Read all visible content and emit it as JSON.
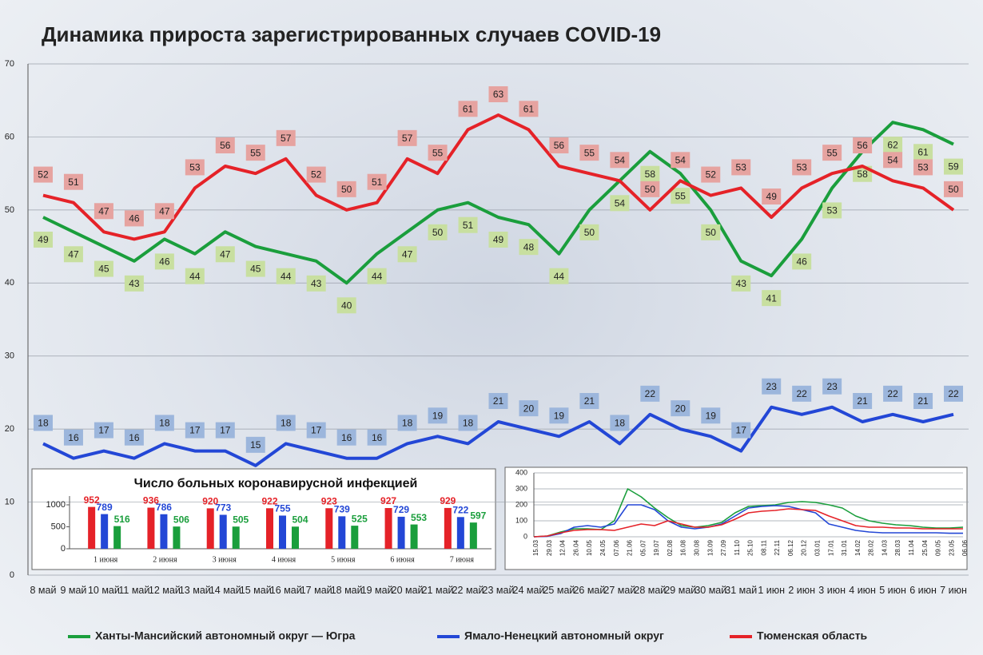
{
  "chart_data": [
    {
      "type": "line",
      "title": "Динамика прироста зарегистрированных случаев COVID-19",
      "categories": [
        "8 май",
        "9 май",
        "10 май",
        "11 май",
        "12 май",
        "13 май",
        "14 май",
        "15 май",
        "16 май",
        "17 май",
        "18 май",
        "19 май",
        "20 май",
        "21 май",
        "22 май",
        "23 май",
        "24 май",
        "25 май",
        "26 май",
        "27 май",
        "28 май",
        "29 май",
        "30 май",
        "31 май",
        "1 июн",
        "2 июн",
        "3 июн",
        "4 июн",
        "5 июн",
        "6 июн",
        "7 июн"
      ],
      "series": [
        {
          "name": "Ханты-Мансийский автономный округ — Югра",
          "color": "#1a9e3c",
          "label_color": "#c8dfa0",
          "values": [
            49,
            47,
            45,
            43,
            46,
            44,
            47,
            45,
            44,
            43,
            40,
            44,
            47,
            50,
            51,
            49,
            48,
            44,
            50,
            54,
            58,
            55,
            50,
            43,
            41,
            46,
            53,
            58,
            62,
            61,
            59
          ]
        },
        {
          "name": "Ямало-Ненецкий автономный округ",
          "color": "#2347d6",
          "label_color": "#9cb6dc",
          "values": [
            18,
            16,
            17,
            16,
            18,
            17,
            17,
            15,
            18,
            17,
            16,
            16,
            18,
            19,
            18,
            21,
            20,
            19,
            21,
            18,
            22,
            20,
            19,
            17,
            23,
            22,
            23,
            21,
            22,
            21,
            22
          ]
        },
        {
          "name": "Тюменская область",
          "color": "#e52228",
          "label_color": "#e6a3a0",
          "values": [
            52,
            51,
            47,
            46,
            47,
            53,
            56,
            55,
            57,
            52,
            50,
            51,
            57,
            55,
            61,
            63,
            61,
            56,
            55,
            54,
            50,
            54,
            52,
            53,
            49,
            53,
            55,
            56,
            54,
            53,
            50
          ]
        }
      ],
      "ylim": [
        0,
        70
      ],
      "yticks": [
        0,
        10,
        20,
        30,
        40,
        50,
        60,
        70
      ],
      "grid": true
    },
    {
      "type": "bar",
      "title": "Число больных коронавирусной  инфекцией",
      "categories": [
        "1 июня",
        "2 июня",
        "3 июня",
        "4 июня",
        "5 июня",
        "6 июня",
        "7 июня"
      ],
      "series": [
        {
          "color": "#e52228",
          "values": [
            952,
            936,
            920,
            922,
            923,
            927,
            929
          ]
        },
        {
          "color": "#2347d6",
          "values": [
            789,
            786,
            773,
            755,
            739,
            729,
            722
          ]
        },
        {
          "color": "#1a9e3c",
          "values": [
            516,
            506,
            505,
            504,
            525,
            553,
            597
          ]
        }
      ],
      "ylim": [
        0,
        1200
      ],
      "yticks": [
        0,
        500,
        1000
      ]
    },
    {
      "type": "line",
      "categories": [
        "15.03",
        "29.03",
        "12.04",
        "26.04",
        "10.05",
        "24.05",
        "07.06",
        "21.06",
        "05.07",
        "19.07",
        "02.08",
        "16.08",
        "30.08",
        "13.09",
        "27.09",
        "11.10",
        "25.10",
        "08.11",
        "22.11",
        "06.12",
        "20.12",
        "03.01",
        "17.01",
        "31.01",
        "14.02",
        "28.02",
        "14.03",
        "28.03",
        "11.04",
        "25.04",
        "09.05",
        "23.05",
        "06.06"
      ],
      "series": [
        {
          "color": "#1a9e3c",
          "values": [
            0,
            5,
            30,
            50,
            50,
            45,
            100,
            300,
            250,
            180,
            120,
            70,
            60,
            70,
            90,
            150,
            190,
            195,
            200,
            215,
            220,
            215,
            200,
            180,
            130,
            100,
            85,
            75,
            70,
            60,
            55,
            55,
            60
          ]
        },
        {
          "color": "#2347d6",
          "values": [
            0,
            3,
            20,
            60,
            70,
            60,
            80,
            200,
            200,
            170,
            100,
            60,
            50,
            60,
            80,
            130,
            180,
            190,
            195,
            190,
            170,
            150,
            80,
            60,
            40,
            30,
            25,
            25,
            25,
            25,
            25,
            22,
            22
          ]
        },
        {
          "color": "#e52228",
          "values": [
            0,
            5,
            25,
            40,
            45,
            45,
            40,
            60,
            80,
            70,
            100,
            80,
            60,
            60,
            75,
            110,
            150,
            160,
            165,
            175,
            170,
            165,
            130,
            100,
            70,
            60,
            60,
            55,
            55,
            50,
            50,
            50,
            50
          ]
        }
      ],
      "ylim": [
        0,
        400
      ],
      "yticks": [
        0,
        100,
        200,
        300,
        400
      ],
      "grid": true
    }
  ]
}
